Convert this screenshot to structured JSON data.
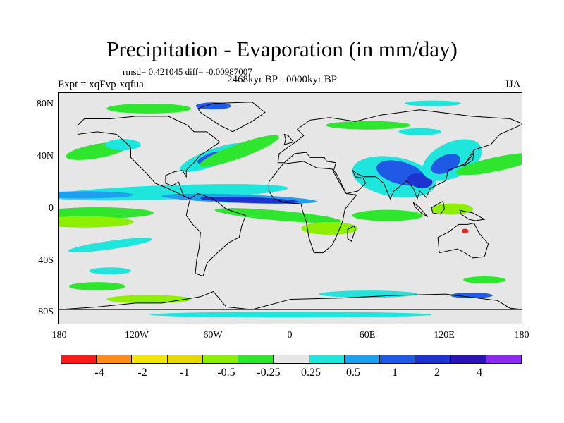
{
  "title": "Precipitation - Evaporation (in mm/day)",
  "stats": "rmsd= 0.421045 diff= -0.00987007",
  "period": "2468kyr BP - 0000kyr BP",
  "experiment": "Expt = xqFvp-xqfua",
  "season": "JJA",
  "y_axis_labels": [
    "80N",
    "40N",
    "0",
    "40S",
    "80S"
  ],
  "x_axis_labels": [
    "180",
    "120W",
    "60W",
    "0",
    "60E",
    "120E",
    "180"
  ],
  "colorbar": {
    "colors": [
      "#ff1a1a",
      "#ff8c1a",
      "#f2e600",
      "#e6d800",
      "#8cf000",
      "#2ee62e",
      "#e6e6e6",
      "#1ee6dc",
      "#1ea0f0",
      "#1e5ae6",
      "#1e32d2",
      "#2a14b4",
      "#8c28f0"
    ],
    "labels": [
      "-4",
      "-2",
      "-1",
      "-0.5",
      "-0.25",
      "0.25",
      "0.5",
      "1",
      "2",
      "4"
    ]
  },
  "palette": {
    "land_line": "#000000",
    "background": "#e6e6e6",
    "green": "#2ee62e",
    "lime": "#8cf000",
    "cyan": "#1ee6dc",
    "sky": "#1ea0f0",
    "blue": "#1e5ae6",
    "navy": "#1e32d2",
    "red": "#ff1a1a"
  }
}
